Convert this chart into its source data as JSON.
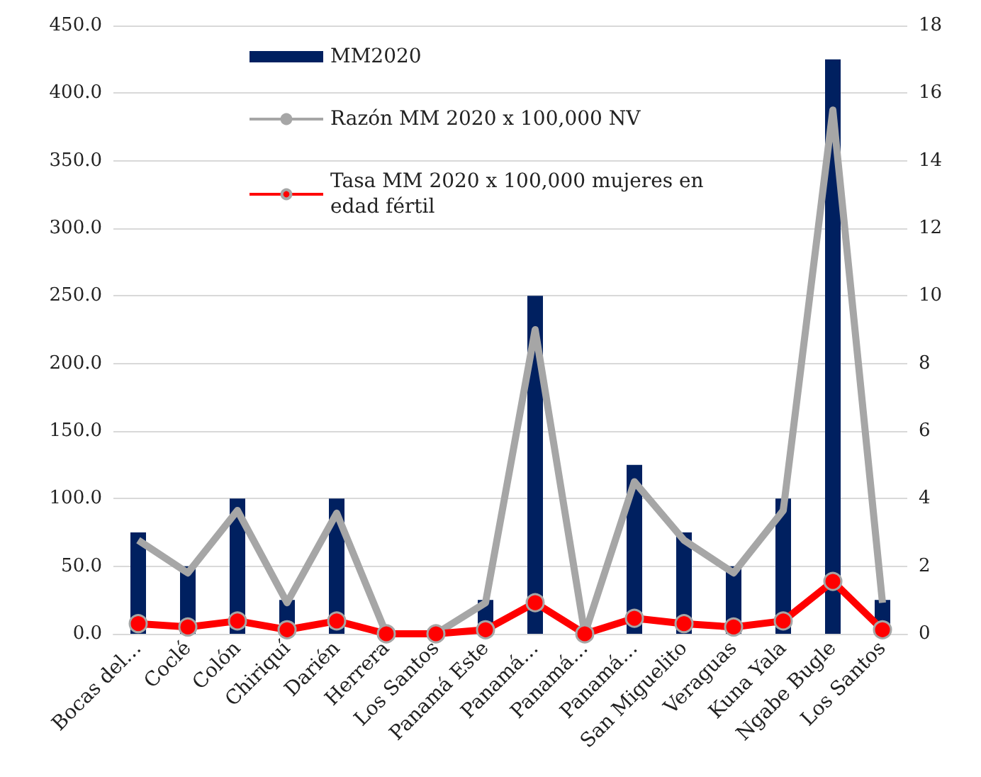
{
  "chart_data": {
    "type": "bar",
    "categories": [
      "Bocas del…",
      "Coclé",
      "Colón",
      "Chiriquí",
      "Darién",
      "Herrera",
      "Los Santos",
      "Panamá Este",
      "Panamá…",
      "Panamá…",
      "Panamá…",
      "San Miguelito",
      "Veraguas",
      "Kuna Yala",
      "Ngabe Bugle",
      "Los Santos"
    ],
    "series": [
      {
        "name": "MM2020",
        "color": "#002060",
        "values": [
          75,
          50,
          100,
          25,
          100,
          0,
          0,
          25,
          250,
          0,
          125,
          75,
          50,
          100,
          425,
          25
        ]
      },
      {
        "name": "Razón MM 2020 x 100,000 NV",
        "type": "line",
        "axis": "y2",
        "marker": "none",
        "color": "#a6a6a6",
        "values": [
          2.77,
          1.8,
          3.65,
          0.92,
          3.57,
          0,
          0,
          0.92,
          9.0,
          0,
          4.5,
          2.77,
          1.8,
          3.65,
          15.5,
          0.92
        ]
      },
      {
        "name": "Tasa MM 2020 x 100,000 mujeres en edad fértil",
        "type": "line",
        "axis": "y2",
        "marker": "circle",
        "color": "#ff0000",
        "values": [
          0.3,
          0.2,
          0.38,
          0.12,
          0.38,
          0,
          0,
          0.12,
          0.92,
          0,
          0.46,
          0.3,
          0.2,
          0.38,
          1.55,
          0.12
        ]
      }
    ],
    "ylim": [
      0,
      450
    ],
    "yticks": [
      {
        "value": 0,
        "label": "0.0"
      },
      {
        "value": 50,
        "label": "50.0"
      },
      {
        "value": 100,
        "label": "100.0"
      },
      {
        "value": 150,
        "label": "150.0"
      },
      {
        "value": 200,
        "label": "200.0"
      },
      {
        "value": 250,
        "label": "250.0"
      },
      {
        "value": 300,
        "label": "300.0"
      },
      {
        "value": 350,
        "label": "350.0"
      },
      {
        "value": 400,
        "label": "400.0"
      },
      {
        "value": 450,
        "label": "450.0"
      }
    ],
    "y2lim": [
      0,
      18
    ],
    "y2ticks": [
      0,
      2,
      4,
      6,
      8,
      10,
      12,
      14,
      16,
      18
    ],
    "grid": "y",
    "legend": "top left"
  }
}
